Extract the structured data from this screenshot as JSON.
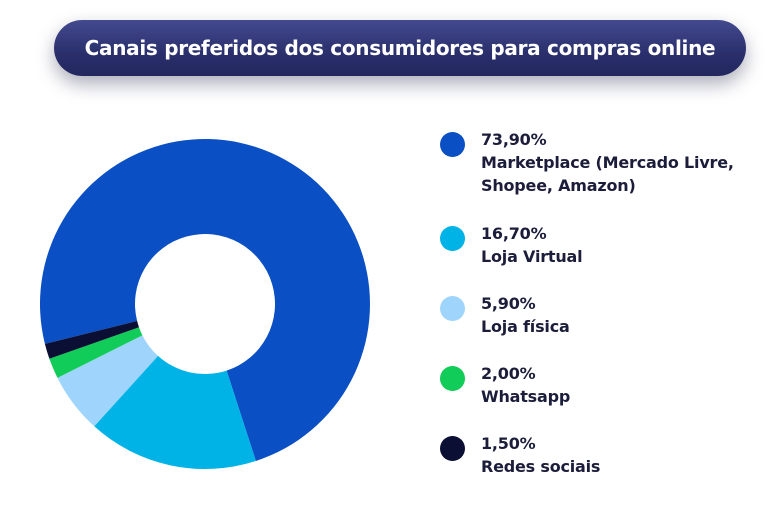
{
  "chart_data": {
    "type": "pie",
    "title": "Canais preferidos dos consumidores para compras online",
    "slices": [
      {
        "label": "Marketplace (Mercado Livre, Shopee, Amazon)",
        "value_label": "73,90%",
        "value": 73.9,
        "color": "#0a4fc4"
      },
      {
        "label": "Loja Virtual",
        "value_label": "16,70%",
        "value": 16.7,
        "color": "#00b3e6"
      },
      {
        "label": "Loja física",
        "value_label": "5,90%",
        "value": 5.9,
        "color": "#9fd4fc"
      },
      {
        "label": "Whatsapp",
        "value_label": "2,00%",
        "value": 2.0,
        "color": "#11cc58"
      },
      {
        "label": "Redes sociais",
        "value_label": "1,50%",
        "value": 1.5,
        "color": "#0a0f33"
      }
    ],
    "legend_position": "right",
    "donut": true
  }
}
